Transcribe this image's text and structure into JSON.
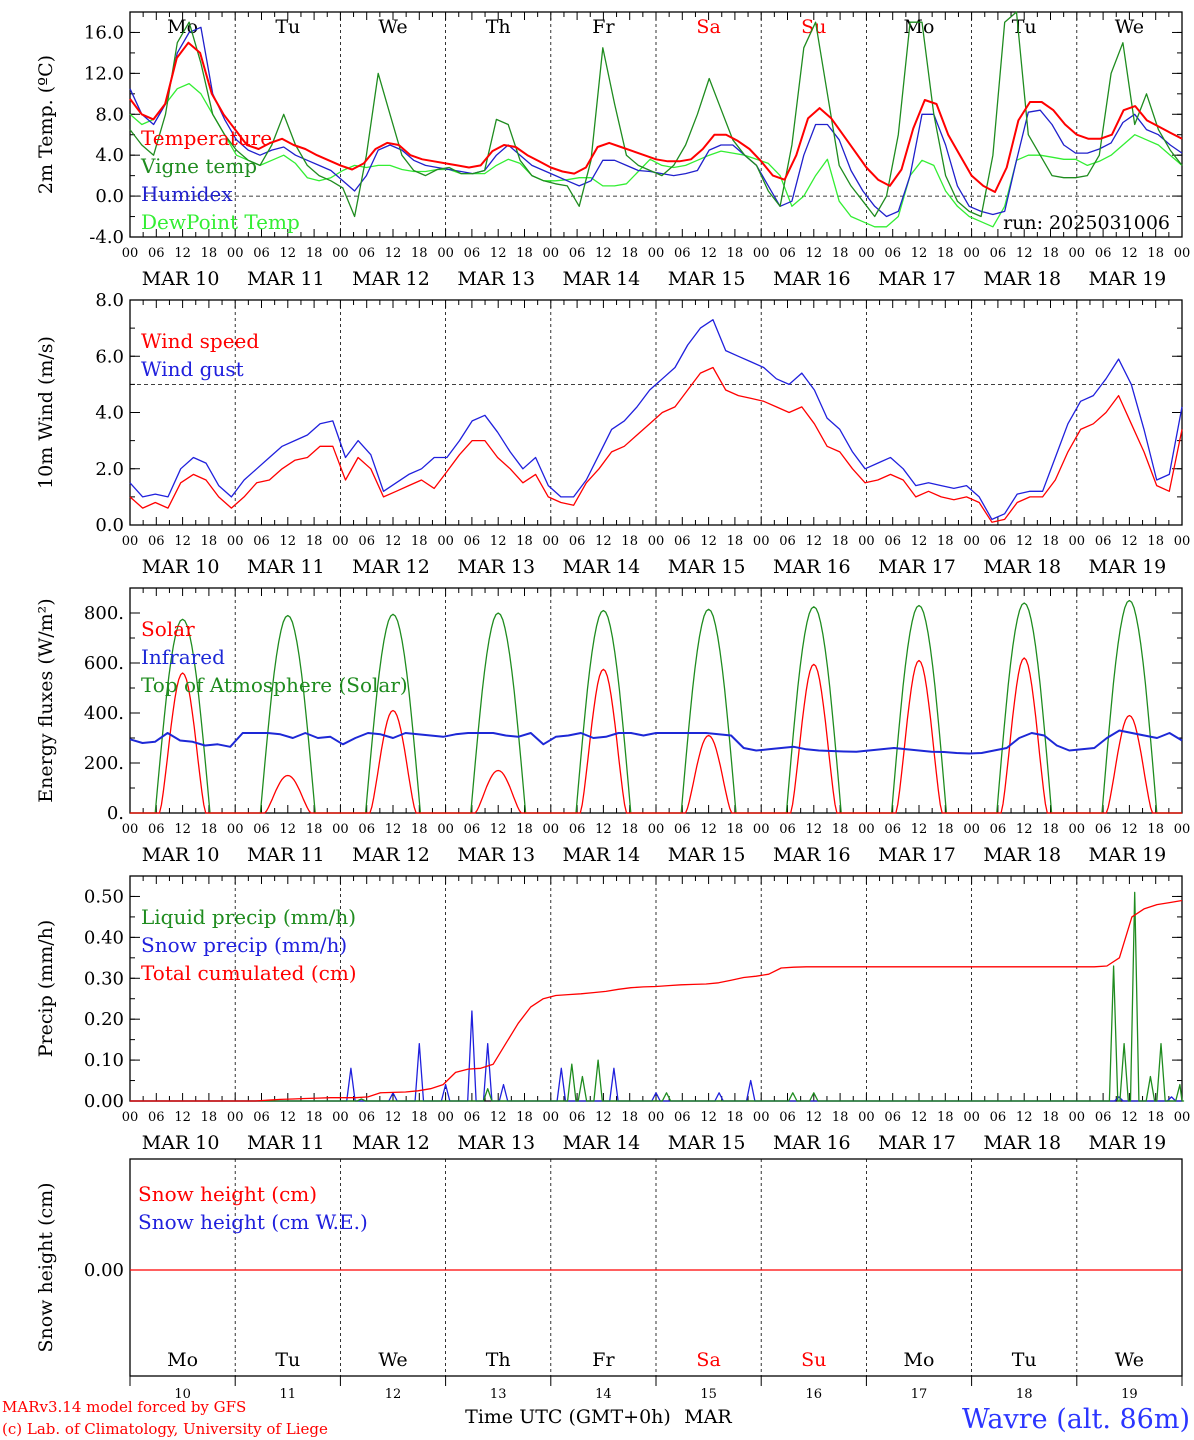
{
  "chart_data": [
    {
      "type": "line",
      "ylabel": "2m Temp. (ºC)",
      "ylim": [
        -4,
        18
      ],
      "yticks": [
        "-4.0",
        "0.0",
        "4.0",
        "8.0",
        "12.0",
        "16.0"
      ],
      "ref_line": 0,
      "annotation": "run: 2025031006",
      "series": [
        {
          "name": "Temperature",
          "color": "#ff0000",
          "thick": true,
          "values": [
            9.5,
            8.0,
            7.5,
            9.0,
            13.5,
            15.0,
            14.0,
            10.0,
            8.0,
            6.5,
            5.0,
            4.6,
            5.2,
            5.6,
            5.0,
            4.6,
            4.0,
            3.5,
            3.0,
            2.6,
            3.2,
            4.6,
            5.2,
            5.0,
            4.0,
            3.6,
            3.4,
            3.2,
            3.0,
            2.8,
            3.0,
            4.4,
            5.0,
            4.8,
            4.0,
            3.4,
            2.8,
            2.4,
            2.2,
            2.8,
            4.8,
            5.2,
            4.8,
            4.4,
            4.0,
            3.6,
            3.4,
            3.4,
            3.6,
            4.6,
            6.0,
            6.0,
            5.4,
            4.6,
            3.4,
            2.0,
            1.6,
            4.0,
            7.6,
            8.6,
            7.6,
            6.0,
            4.4,
            2.8,
            1.6,
            1.0,
            2.6,
            6.6,
            9.4,
            9.0,
            6.0,
            4.0,
            2.0,
            1.0,
            0.4,
            2.8,
            7.4,
            9.2,
            9.2,
            8.4,
            7.0,
            6.0,
            5.6,
            5.6,
            6.0,
            8.4,
            8.8,
            7.4,
            6.8,
            6.2,
            5.6
          ]
        },
        {
          "name": "Vigne temp",
          "color": "#1f8c1f",
          "thick": false,
          "values": [
            6.5,
            5.0,
            4.0,
            8.0,
            15.0,
            17.0,
            13.0,
            8.0,
            6.0,
            4.5,
            3.5,
            3.0,
            5.0,
            8.0,
            5.0,
            3.0,
            2.0,
            1.5,
            0.8,
            -2.0,
            4.0,
            12.0,
            8.0,
            4.0,
            2.5,
            2.0,
            2.6,
            2.8,
            2.2,
            2.2,
            2.5,
            7.5,
            7.0,
            3.5,
            2.0,
            1.5,
            1.2,
            1.0,
            -1.0,
            3.5,
            14.5,
            9.0,
            4.0,
            3.0,
            2.5,
            2.0,
            3.0,
            5.0,
            8.0,
            11.5,
            8.5,
            5.5,
            4.0,
            3.0,
            0.5,
            -1.0,
            5.0,
            14.5,
            17.0,
            10.0,
            3.0,
            1.0,
            -0.5,
            -2.0,
            0.0,
            6.0,
            17.0,
            17.0,
            8.0,
            2.0,
            -0.5,
            -1.5,
            -2.0,
            4.0,
            17.0,
            18.0,
            6.0,
            4.0,
            2.0,
            1.8,
            1.8,
            2.0,
            4.0,
            12.0,
            15.0,
            7.0,
            10.0,
            6.5,
            4.5,
            3.0
          ]
        },
        {
          "name": "Humidex",
          "color": "#2020cc",
          "thick": false,
          "values": [
            10.5,
            8.0,
            7.0,
            9.0,
            14.0,
            16.0,
            16.5,
            10.0,
            7.5,
            5.5,
            4.5,
            4.0,
            4.5,
            4.8,
            4.0,
            3.5,
            3.0,
            2.5,
            1.5,
            0.5,
            2.0,
            4.5,
            5.0,
            4.5,
            3.5,
            3.0,
            2.8,
            2.6,
            2.4,
            2.2,
            2.5,
            4.0,
            5.0,
            4.0,
            3.0,
            2.5,
            2.0,
            1.5,
            1.0,
            1.5,
            3.5,
            3.5,
            3.0,
            2.5,
            2.4,
            2.2,
            2.0,
            2.2,
            2.5,
            4.5,
            5.0,
            5.0,
            4.0,
            3.0,
            1.0,
            -1.0,
            -0.5,
            4.0,
            7.0,
            7.0,
            5.5,
            2.5,
            0.5,
            -1.0,
            -2.0,
            -1.5,
            2.0,
            8.0,
            8.0,
            5.0,
            1.0,
            -1.0,
            -1.5,
            -1.8,
            -1.5,
            3.5,
            8.2,
            8.4,
            7.0,
            5.0,
            4.2,
            4.2,
            4.6,
            5.2,
            7.2,
            8.0,
            6.5,
            6.0,
            5.0,
            4.2
          ]
        },
        {
          "name": "DewPoint Temp",
          "color": "#33ee33",
          "thick": false,
          "values": [
            8.0,
            7.0,
            7.5,
            9.0,
            10.5,
            11.0,
            10.0,
            8.0,
            6.0,
            4.0,
            3.5,
            3.0,
            3.5,
            4.0,
            3.2,
            1.8,
            1.5,
            1.8,
            2.5,
            3.0,
            2.8,
            3.0,
            3.0,
            2.6,
            2.4,
            2.4,
            2.6,
            2.6,
            2.2,
            2.2,
            2.2,
            3.0,
            3.6,
            3.2,
            2.0,
            1.5,
            1.5,
            1.6,
            1.8,
            1.8,
            1.0,
            1.0,
            1.2,
            2.4,
            3.6,
            3.0,
            2.8,
            3.0,
            3.5,
            4.0,
            4.4,
            4.2,
            4.0,
            3.6,
            3.2,
            2.0,
            -1.0,
            0.0,
            2.0,
            3.6,
            -0.5,
            -2.0,
            -2.5,
            -3.0,
            -3.0,
            -2.0,
            2.0,
            3.5,
            3.0,
            0.5,
            -1.0,
            -2.0,
            -2.5,
            -3.0,
            -1.0,
            3.5,
            4.0,
            4.0,
            3.8,
            3.6,
            3.6,
            3.0,
            3.4,
            4.0,
            5.0,
            6.0,
            5.5,
            5.0,
            4.0,
            3.0
          ]
        }
      ]
    },
    {
      "type": "line",
      "ylabel": "10m Wind (m/s)",
      "ylim": [
        0,
        8
      ],
      "yticks": [
        "0.0",
        "2.0",
        "4.0",
        "6.0",
        "8.0"
      ],
      "ref_line": 5,
      "series": [
        {
          "name": "Wind speed",
          "color": "#ff0000",
          "thick": false,
          "values": [
            1.0,
            0.6,
            0.8,
            0.6,
            1.5,
            1.8,
            1.6,
            1.0,
            0.6,
            1.0,
            1.5,
            1.6,
            2.0,
            2.3,
            2.4,
            2.8,
            2.8,
            1.6,
            2.4,
            2.0,
            1.0,
            1.2,
            1.4,
            1.6,
            1.3,
            1.9,
            2.5,
            3.0,
            3.0,
            2.4,
            2.0,
            1.5,
            1.8,
            1.0,
            0.8,
            0.7,
            1.5,
            2.0,
            2.6,
            2.8,
            3.2,
            3.6,
            4.0,
            4.2,
            4.8,
            5.4,
            5.6,
            4.8,
            4.6,
            4.5,
            4.4,
            4.2,
            4.0,
            4.2,
            3.6,
            2.8,
            2.6,
            2.0,
            1.5,
            1.6,
            1.8,
            1.6,
            1.0,
            1.2,
            1.0,
            0.9,
            1.0,
            0.8,
            0.1,
            0.2,
            0.8,
            1.0,
            1.0,
            1.6,
            2.6,
            3.4,
            3.6,
            4.0,
            4.6,
            3.6,
            2.6,
            1.4,
            1.2,
            3.4
          ]
        },
        {
          "name": "Wind gust",
          "color": "#2020dd",
          "thick": false,
          "values": [
            1.5,
            1.0,
            1.1,
            1.0,
            2.0,
            2.4,
            2.2,
            1.4,
            1.0,
            1.6,
            2.0,
            2.4,
            2.8,
            3.0,
            3.2,
            3.6,
            3.7,
            2.4,
            3.0,
            2.5,
            1.2,
            1.5,
            1.8,
            2.0,
            2.4,
            2.4,
            3.0,
            3.7,
            3.9,
            3.3,
            2.6,
            2.0,
            2.4,
            1.4,
            1.0,
            1.0,
            1.6,
            2.5,
            3.4,
            3.7,
            4.2,
            4.8,
            5.2,
            5.6,
            6.4,
            7.0,
            7.3,
            6.2,
            6.0,
            5.8,
            5.6,
            5.2,
            5.0,
            5.4,
            4.8,
            3.8,
            3.4,
            2.6,
            2.0,
            2.2,
            2.4,
            2.0,
            1.4,
            1.5,
            1.4,
            1.3,
            1.4,
            1.0,
            0.2,
            0.4,
            1.1,
            1.2,
            1.2,
            2.4,
            3.6,
            4.4,
            4.6,
            5.2,
            5.9,
            5.0,
            3.4,
            1.6,
            1.8,
            4.2
          ]
        }
      ]
    },
    {
      "type": "line",
      "ylabel": "Energy fluxes (W/m²)",
      "ylim": [
        0,
        900
      ],
      "yticks": [
        "0.",
        "200.",
        "400.",
        "600.",
        "800."
      ],
      "series": [
        {
          "name": "Solar",
          "color": "#ff0000",
          "thick": false,
          "days_peak": [
            560,
            150,
            410,
            170,
            575,
            310,
            595,
            610,
            620,
            390
          ]
        },
        {
          "name": "Infrared",
          "color": "#1d28d6",
          "thick": true,
          "values": [
            295,
            280,
            285,
            320,
            290,
            285,
            270,
            275,
            265,
            320,
            320,
            320,
            315,
            300,
            320,
            300,
            305,
            275,
            300,
            320,
            315,
            300,
            320,
            315,
            310,
            305,
            315,
            320,
            320,
            320,
            310,
            305,
            320,
            275,
            305,
            310,
            320,
            300,
            305,
            320,
            320,
            310,
            320,
            320,
            320,
            320,
            320,
            315,
            310,
            260,
            250,
            255,
            260,
            265,
            255,
            250,
            248,
            246,
            245,
            250,
            255,
            260,
            255,
            250,
            245,
            244,
            240,
            238,
            240,
            250,
            260,
            300,
            320,
            310,
            270,
            250,
            255,
            260,
            300,
            330,
            320,
            310,
            300,
            320,
            290
          ]
        },
        {
          "name": "Top of Atmosphere (Solar)",
          "color": "#1f8c1f",
          "thick": false,
          "days_peak": [
            775,
            790,
            795,
            800,
            810,
            815,
            825,
            830,
            840,
            850
          ]
        }
      ]
    },
    {
      "type": "line",
      "ylabel": "Precip (mm/h)",
      "ylim": [
        0,
        0.55
      ],
      "yticks": [
        "0.00",
        "0.10",
        "0.20",
        "0.30",
        "0.40",
        "0.50"
      ],
      "series": [
        {
          "name": "Liquid precip (mm/h)",
          "color": "#1f8c1f",
          "thick": false,
          "spikes": [
            [
              2.2,
              0.005
            ],
            [
              3.4,
              0.03
            ],
            [
              4.2,
              0.09
            ],
            [
              4.3,
              0.06
            ],
            [
              4.45,
              0.1
            ],
            [
              5.1,
              0.02
            ],
            [
              6.3,
              0.02
            ],
            [
              6.5,
              0.02
            ],
            [
              9.35,
              0.33
            ],
            [
              9.45,
              0.14
            ],
            [
              9.55,
              0.51
            ],
            [
              9.7,
              0.06
            ],
            [
              9.8,
              0.14
            ],
            [
              9.98,
              0.04
            ]
          ]
        },
        {
          "name": "Snow precip (mm/h)",
          "color": "#2020dd",
          "thick": false,
          "spikes": [
            [
              2.1,
              0.08
            ],
            [
              2.5,
              0.02
            ],
            [
              2.75,
              0.14
            ],
            [
              3.0,
              0.04
            ],
            [
              3.25,
              0.22
            ],
            [
              3.4,
              0.14
            ],
            [
              3.55,
              0.04
            ],
            [
              4.1,
              0.08
            ],
            [
              4.6,
              0.08
            ],
            [
              5.0,
              0.02
            ],
            [
              5.6,
              0.02
            ],
            [
              5.9,
              0.05
            ],
            [
              9.4,
              0.01
            ],
            [
              9.9,
              0.01
            ]
          ]
        },
        {
          "name": "Total cumulated (cm)",
          "color": "#ff0000",
          "thick": false,
          "values": [
            0,
            0,
            0,
            0,
            0,
            0,
            0,
            0,
            0,
            0,
            0,
            0.002,
            0.004,
            0.005,
            0.006,
            0.007,
            0.008,
            0.008,
            0.008,
            0.01,
            0.02,
            0.021,
            0.022,
            0.025,
            0.03,
            0.04,
            0.07,
            0.078,
            0.08,
            0.09,
            0.14,
            0.19,
            0.23,
            0.25,
            0.258,
            0.26,
            0.262,
            0.265,
            0.268,
            0.273,
            0.277,
            0.279,
            0.28,
            0.282,
            0.284,
            0.285,
            0.286,
            0.289,
            0.295,
            0.302,
            0.305,
            0.31,
            0.325,
            0.327,
            0.328,
            0.328,
            0.328,
            0.328,
            0.328,
            0.328,
            0.328,
            0.328,
            0.328,
            0.328,
            0.328,
            0.328,
            0.328,
            0.328,
            0.328,
            0.328,
            0.328,
            0.328,
            0.328,
            0.328,
            0.328,
            0.328,
            0.328,
            0.328,
            0.33,
            0.35,
            0.45,
            0.47,
            0.48,
            0.485,
            0.49
          ]
        }
      ]
    },
    {
      "type": "line",
      "ylabel": "Snow height (cm)",
      "yticks": [
        "0.00"
      ],
      "series": [
        {
          "name": "Snow height (cm)",
          "color": "#ff0000",
          "values": [
            0,
            0
          ]
        },
        {
          "name": "Snow height (cm W.E.)",
          "color": "#2020dd",
          "values": [
            0,
            0
          ]
        }
      ]
    }
  ],
  "days": [
    {
      "dow": "Mo",
      "date": "MAR 10",
      "num": "10",
      "weekend": false
    },
    {
      "dow": "Tu",
      "date": "MAR 11",
      "num": "11",
      "weekend": false
    },
    {
      "dow": "We",
      "date": "MAR 12",
      "num": "12",
      "weekend": false
    },
    {
      "dow": "Th",
      "date": "MAR 13",
      "num": "13",
      "weekend": false
    },
    {
      "dow": "Fr",
      "date": "MAR 14",
      "num": "14",
      "weekend": false
    },
    {
      "dow": "Sa",
      "date": "MAR 15",
      "num": "15",
      "weekend": true
    },
    {
      "dow": "Su",
      "date": "MAR 16",
      "num": "16",
      "weekend": true
    },
    {
      "dow": "Mo",
      "date": "MAR 17",
      "num": "17",
      "weekend": false
    },
    {
      "dow": "Tu",
      "date": "MAR 18",
      "num": "18",
      "weekend": false
    },
    {
      "dow": "We",
      "date": "MAR 19",
      "num": "19",
      "weekend": false
    }
  ],
  "hour_labels": [
    "00",
    "06",
    "12",
    "18"
  ],
  "final_hour": "00",
  "footer": {
    "xlabel": "Time UTC (GMT+0h)",
    "month": "MAR",
    "model_line": "MARv3.14 model forced by GFS",
    "credit_line": "(c) Lab. of Climatology, University of Liege",
    "station": "Wavre (alt. 86m)"
  },
  "colors": {
    "weekend": "#ff0000",
    "weekday": "#000000"
  }
}
